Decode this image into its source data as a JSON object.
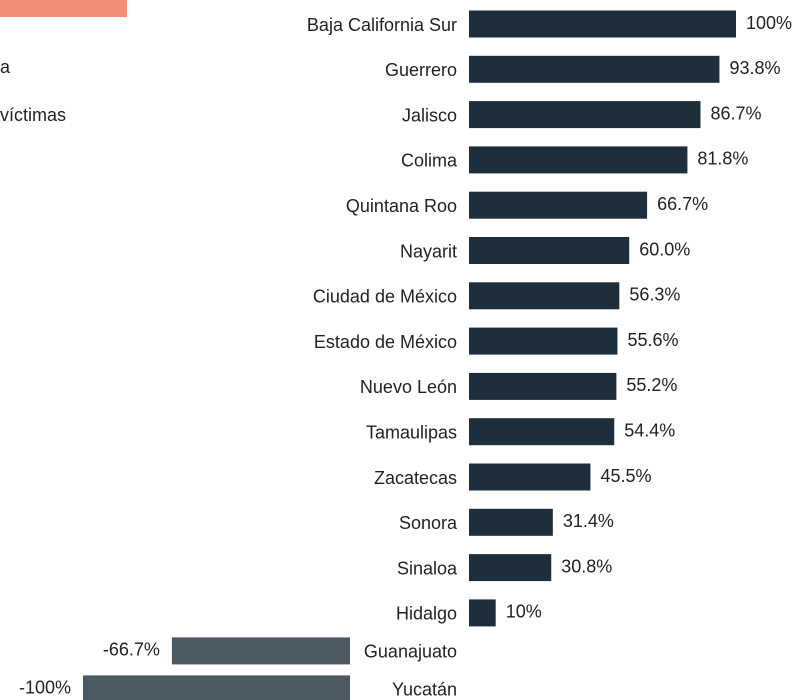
{
  "chart_data": {
    "type": "hbar",
    "annotations": [
      "a",
      "víctimas"
    ],
    "categories": [
      "Baja California Sur",
      "Guerrero",
      "Jalisco",
      "Colima",
      "Quintana Roo",
      "Nayarit",
      "Ciudad de México",
      "Estado de México",
      "Nuevo León",
      "Tamaulipas",
      "Zacatecas",
      "Sonora",
      "Sinaloa",
      "Hidalgo",
      "Guanajuato",
      "Yucatán"
    ],
    "values": [
      100,
      93.8,
      86.7,
      81.8,
      66.7,
      60.0,
      56.3,
      55.6,
      55.2,
      54.4,
      45.5,
      31.4,
      30.8,
      10,
      -66.7,
      -100
    ],
    "value_labels": [
      "100%",
      "93.8%",
      "86.7%",
      "81.8%",
      "66.7%",
      "60.0%",
      "56.3%",
      "55.6%",
      "55.2%",
      "54.4%",
      "45.5%",
      "31.4%",
      "30.8%",
      "10%",
      "-66.7%",
      "-100%"
    ],
    "color": "#1e2f3b",
    "negative_color": "#4a5962",
    "legend_color": "#f28e79"
  }
}
